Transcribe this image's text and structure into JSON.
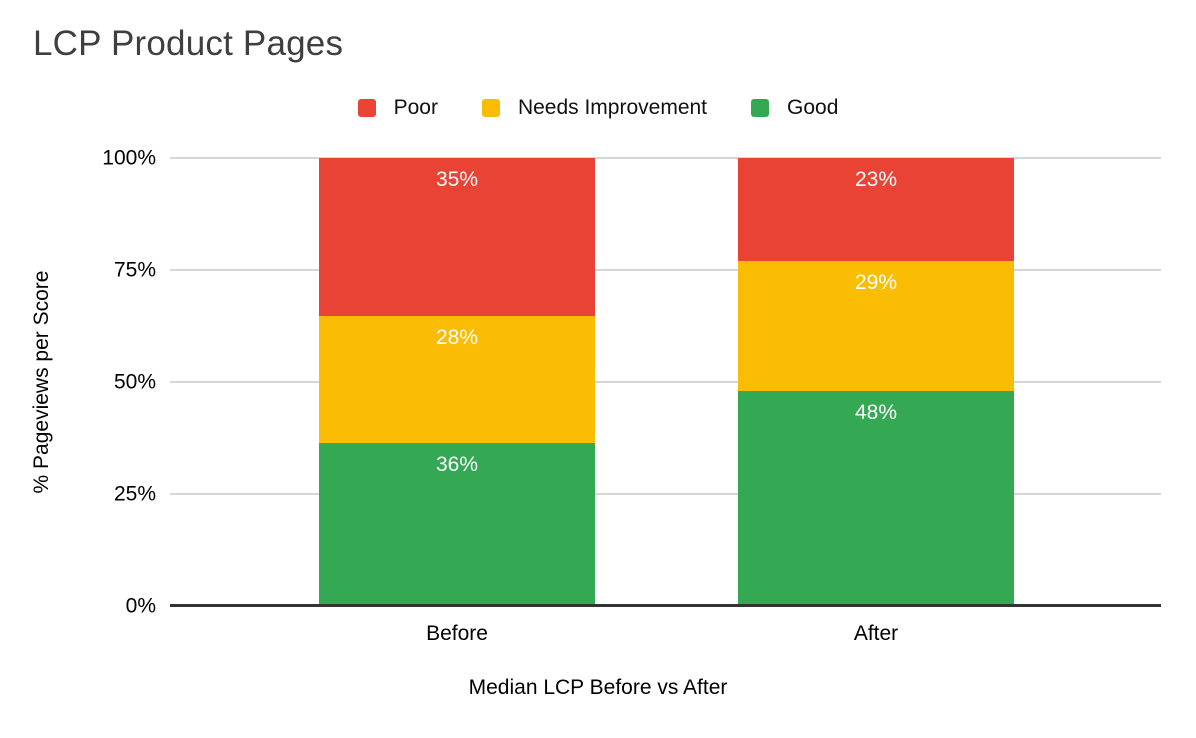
{
  "title": "LCP Product Pages",
  "chart_data": {
    "type": "bar",
    "stacked": true,
    "title": "LCP Product Pages",
    "xlabel": "Median LCP Before vs After",
    "ylabel": "% Pageviews per Score",
    "categories": [
      "Before",
      "After"
    ],
    "series": [
      {
        "name": "Poor",
        "color": "#E94335",
        "values": [
          35,
          23
        ]
      },
      {
        "name": "Needs Improvement",
        "color": "#FBBC04",
        "values": [
          28,
          29
        ]
      },
      {
        "name": "Good",
        "color": "#34A853",
        "values": [
          36,
          48
        ]
      }
    ],
    "value_label_suffix": "%",
    "value_label_color": "#ffffff",
    "yticks": [
      {
        "value": 0,
        "label": "0%"
      },
      {
        "value": 25,
        "label": "25%"
      },
      {
        "value": 50,
        "label": "50%"
      },
      {
        "value": 75,
        "label": "75%"
      },
      {
        "value": 100,
        "label": "100%"
      }
    ],
    "ylim": [
      0,
      100
    ],
    "grid": true,
    "legend_position": "top",
    "gridline_color": "#d6d6d6",
    "zero_line_color": "#333333"
  }
}
